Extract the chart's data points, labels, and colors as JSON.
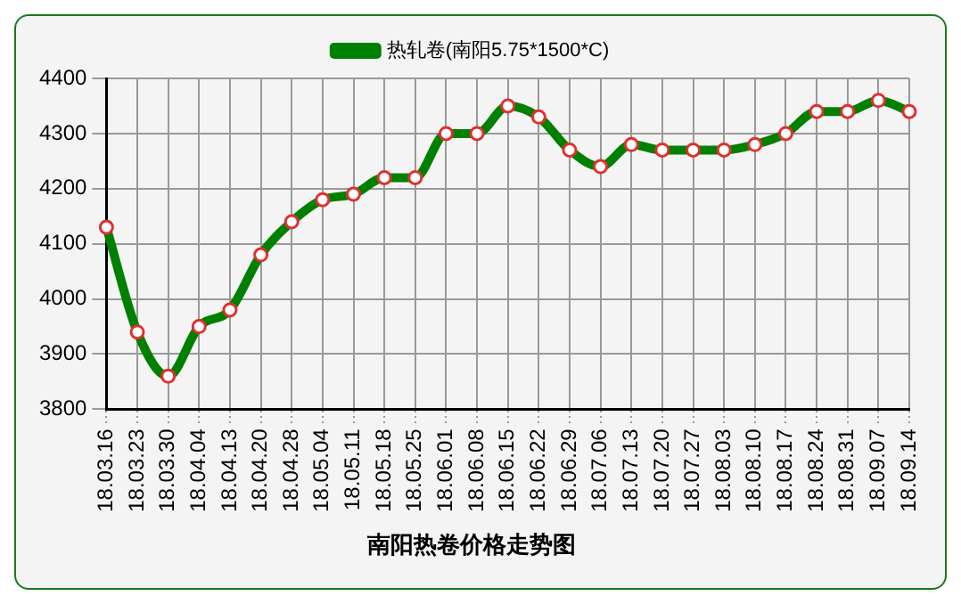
{
  "chart_data": {
    "type": "line",
    "title": "南阳热卷价格走势图",
    "categories": [
      "18.03.16",
      "18.03.23",
      "18.03.30",
      "18.04.04",
      "18.04.13",
      "18.04.20",
      "18.04.28",
      "18.05.04",
      "18.05.11",
      "18.05.18",
      "18.05.25",
      "18.06.01",
      "18.06.08",
      "18.06.15",
      "18.06.22",
      "18.06.29",
      "18.07.06",
      "18.07.13",
      "18.07.20",
      "18.07.27",
      "18.08.03",
      "18.08.10",
      "18.08.17",
      "18.08.24",
      "18.08.31",
      "18.09.07",
      "18.09.14"
    ],
    "series": [
      {
        "name": "热轧卷(南阳5.75*1500*C)",
        "color": "#008000",
        "values": [
          4130,
          3940,
          3860,
          3950,
          3980,
          4080,
          4140,
          4180,
          4190,
          4220,
          4220,
          4300,
          4300,
          4350,
          4330,
          4270,
          4240,
          4280,
          4270,
          4270,
          4270,
          4280,
          4300,
          4340,
          4340,
          4360,
          4340
        ]
      }
    ],
    "ylim": [
      3800,
      4400
    ],
    "yticks": [
      3800,
      3900,
      4000,
      4100,
      4200,
      4300,
      4400
    ],
    "grid": true,
    "legend": "top",
    "marker": "circle"
  }
}
